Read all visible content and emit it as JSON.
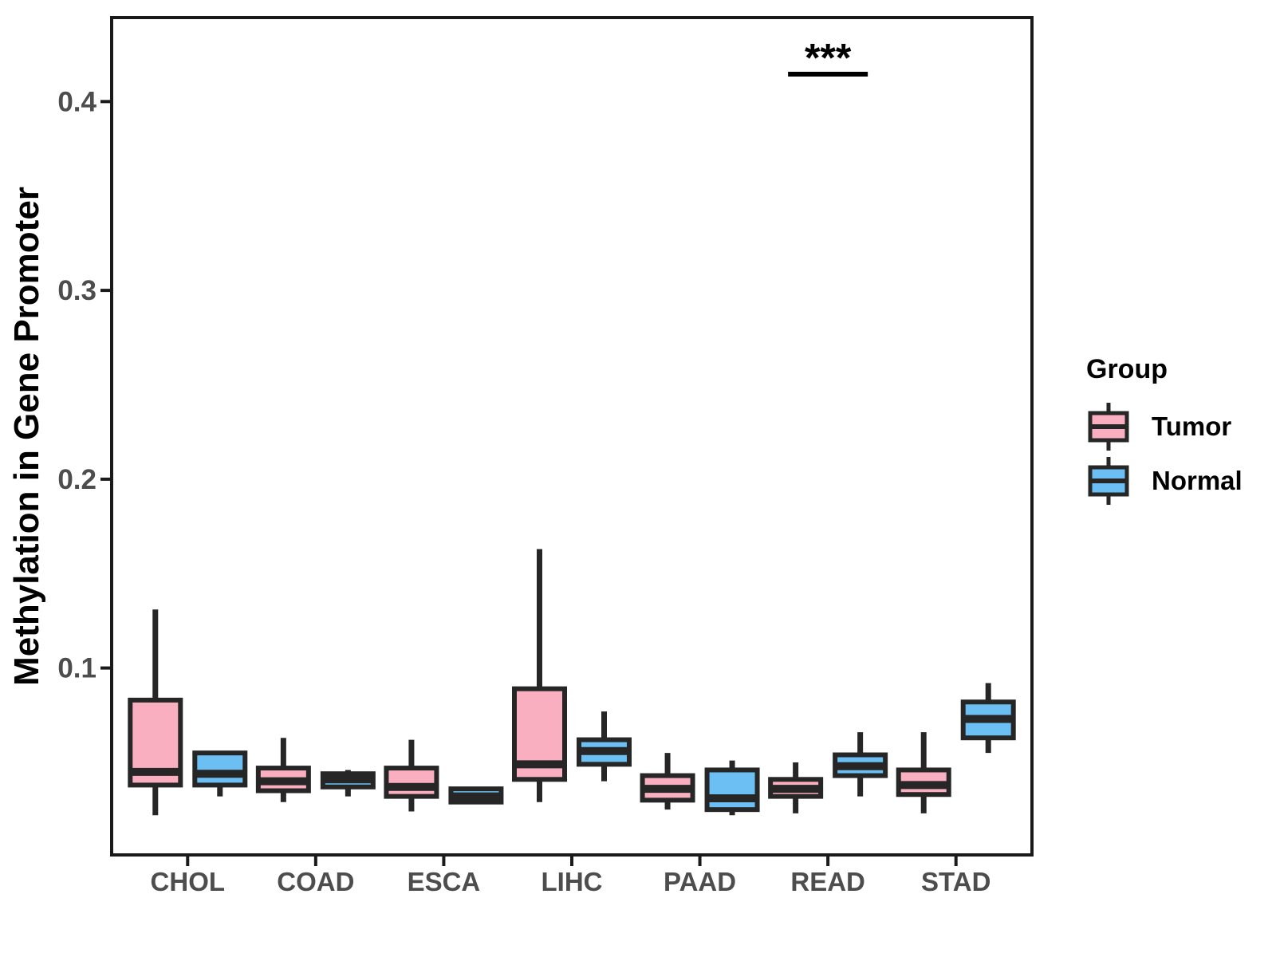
{
  "figure": {
    "y_axis_title": "Methylation in Gene Promoter"
  },
  "legend": {
    "title": "Group",
    "items": [
      {
        "label": "Tumor",
        "color": "#FAAFC1"
      },
      {
        "label": "Normal",
        "color": "#6CBFF2"
      }
    ]
  },
  "chart_data": {
    "type": "boxplot",
    "title": "",
    "xlabel": "",
    "ylabel": "Methylation in Gene Promoter",
    "categories": [
      "CHOL",
      "COAD",
      "ESCA",
      "LIHC",
      "PAAD",
      "READ",
      "STAD"
    ],
    "groups": [
      "Tumor",
      "Normal"
    ],
    "yticks": [
      0.1,
      0.2,
      0.3,
      0.4
    ],
    "ylim": [
      0.001,
      0.4445
    ],
    "legend_position": "right",
    "grid": false,
    "series": [
      {
        "name": "Tumor",
        "fill": "#FAAFC1",
        "boxes": [
          {
            "category": "CHOL",
            "low": 0.022,
            "q1": 0.038,
            "median": 0.045,
            "q3": 0.083,
            "high": 0.131
          },
          {
            "category": "COAD",
            "low": 0.029,
            "q1": 0.035,
            "median": 0.04,
            "q3": 0.047,
            "high": 0.063
          },
          {
            "category": "ESCA",
            "low": 0.024,
            "q1": 0.032,
            "median": 0.037,
            "q3": 0.047,
            "high": 0.062
          },
          {
            "category": "LIHC",
            "low": 0.029,
            "q1": 0.041,
            "median": 0.049,
            "q3": 0.089,
            "high": 0.163
          },
          {
            "category": "PAAD",
            "low": 0.025,
            "q1": 0.03,
            "median": 0.036,
            "q3": 0.043,
            "high": 0.055
          },
          {
            "category": "READ",
            "low": 0.023,
            "q1": 0.032,
            "median": 0.036,
            "q3": 0.041,
            "high": 0.05
          },
          {
            "category": "STAD",
            "low": 0.023,
            "q1": 0.033,
            "median": 0.038,
            "q3": 0.046,
            "high": 0.066
          }
        ]
      },
      {
        "name": "Normal",
        "fill": "#6CBFF2",
        "boxes": [
          {
            "category": "CHOL",
            "low": 0.032,
            "q1": 0.038,
            "median": 0.044,
            "q3": 0.055,
            "high": 0.055
          },
          {
            "category": "COAD",
            "low": 0.032,
            "q1": 0.037,
            "median": 0.041,
            "q3": 0.044,
            "high": 0.046
          },
          {
            "category": "ESCA",
            "low": 0.028,
            "q1": 0.029,
            "median": 0.032,
            "q3": 0.036,
            "high": 0.036
          },
          {
            "category": "LIHC",
            "low": 0.04,
            "q1": 0.049,
            "median": 0.056,
            "q3": 0.062,
            "high": 0.077
          },
          {
            "category": "PAAD",
            "low": 0.022,
            "q1": 0.025,
            "median": 0.031,
            "q3": 0.046,
            "high": 0.051
          },
          {
            "category": "READ",
            "low": 0.032,
            "q1": 0.043,
            "median": 0.048,
            "q3": 0.054,
            "high": 0.066
          },
          {
            "category": "STAD",
            "low": 0.055,
            "q1": 0.063,
            "median": 0.073,
            "q3": 0.082,
            "high": 0.092
          }
        ]
      }
    ],
    "annotations": [
      {
        "type": "significance",
        "category": "READ",
        "label": "***",
        "bar_y": 0.4145,
        "label_y": 0.416
      }
    ],
    "style": {
      "box_stroke": "#262626",
      "panel_border": "#1A1A1A",
      "tick_color": "#1A1A1A",
      "tick_label_color": "#4D4D4D",
      "annotation_color": "#000000",
      "background": "#FFFFFF"
    }
  }
}
